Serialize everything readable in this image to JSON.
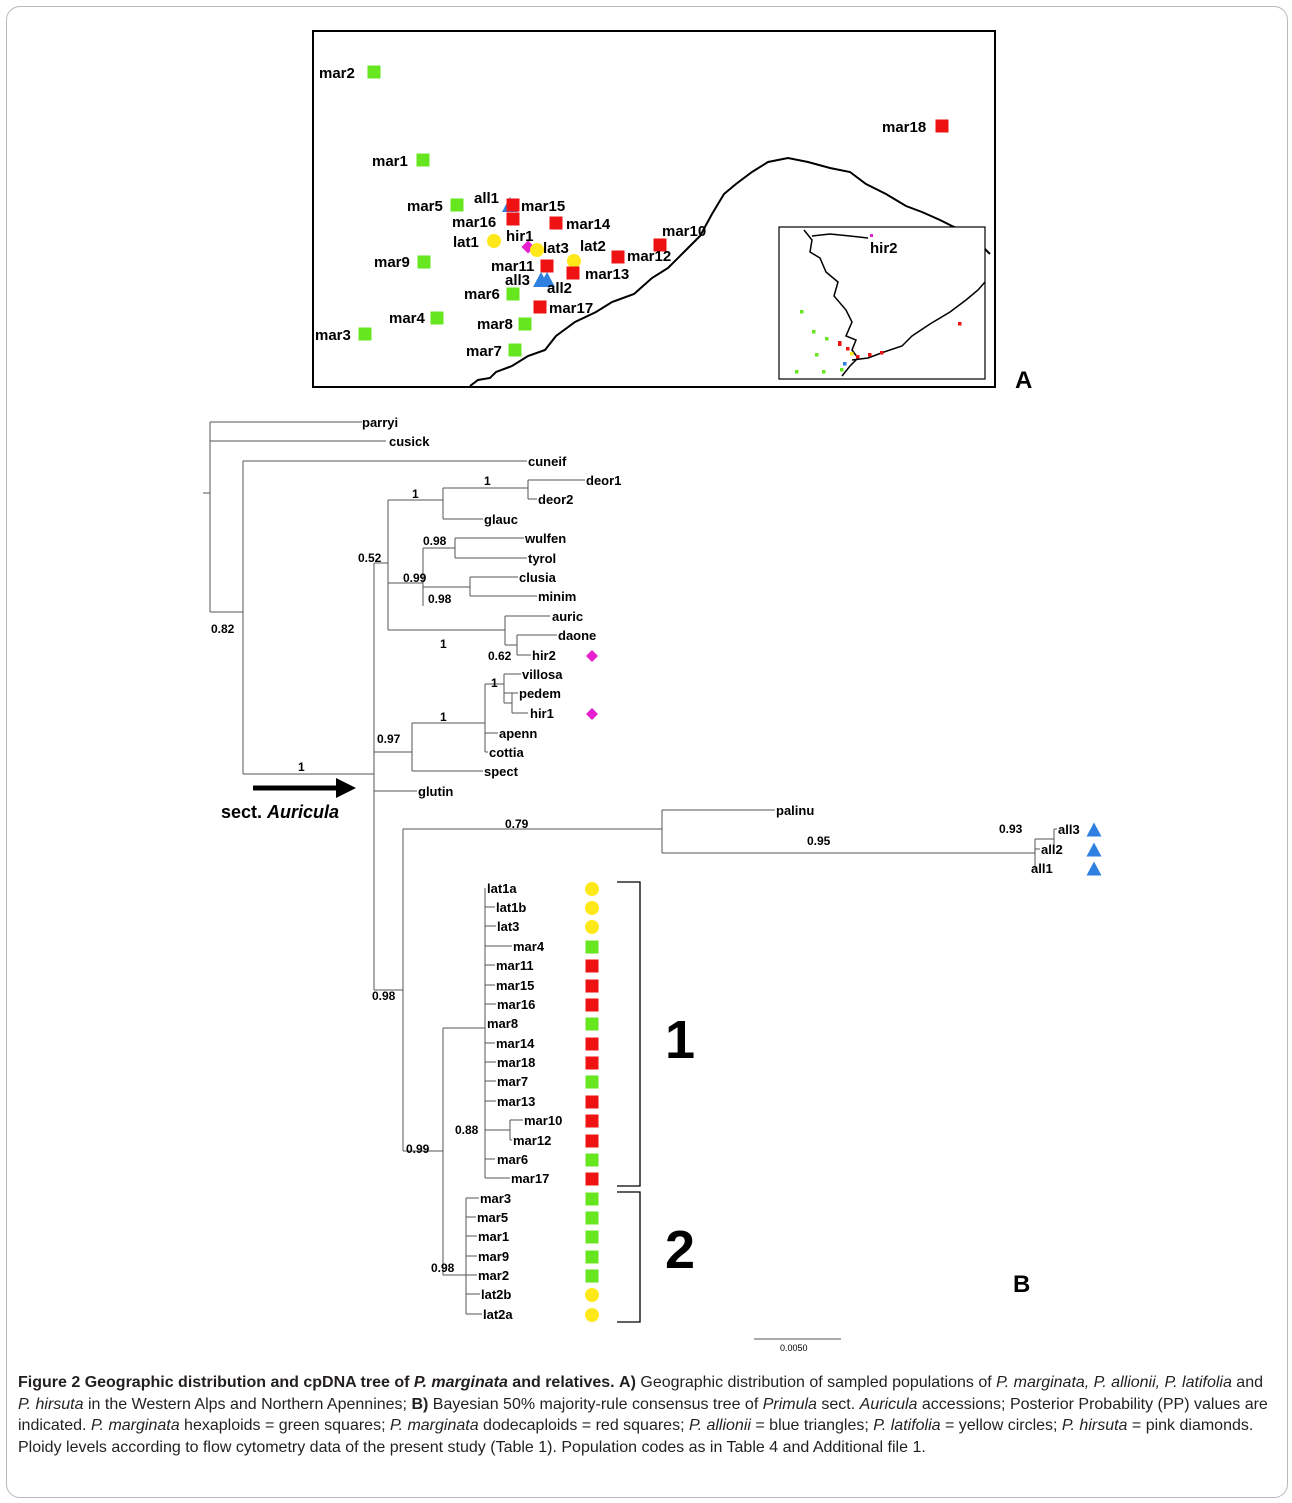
{
  "caption": {
    "figure_label": "Figure 2",
    "title_pre": "Geographic distribution and cpDNA tree of ",
    "title_species": "P. marginata",
    "title_post": " and relatives.",
    "a_label": "A)",
    "a_text_1": " Geographic distribution of sampled populations of ",
    "a_species": "P. marginata, P. allionii, P. latifolia",
    "a_text_2": " and ",
    "a_species_2": "P. hirsuta",
    "a_text_3": " in the Western Alps and Northern Apennines; ",
    "b_label": "B)",
    "b_text_1": " Bayesian 50% majority-rule consensus tree of ",
    "b_genus": "Primula",
    "b_text_2": " sect. ",
    "b_sect": "Auricula",
    "b_text_3": " accessions; Posterior Probability (PP) values are indicated. ",
    "marg1": "P. marginata",
    "b_text_4": " hexaploids = green squares; ",
    "marg2": "P. marginata",
    "b_text_5": " dodecaploids = red squares; ",
    "alli": "P. allionii",
    "b_text_6": " = blue triangles; ",
    "lati": "P. latifolia",
    "b_text_7": " = yellow circles; ",
    "hirs": "P. hirsuta",
    "b_text_8": " = pink diamonds. Ploidy levels according to flow cytometry data of the present study (Table 1). Population codes as in Table 4 and Additional file 1."
  },
  "colors": {
    "marginata_hexaploid": "#66e61f",
    "marginata_dodecaploid": "#ee1212",
    "allionii": "#2f80e0",
    "latifolia": "#ffe81a",
    "hirsuta": "#e61fd0"
  },
  "panel_a": {
    "panel_label": "A",
    "inset_label": "hir2",
    "sites": [
      {
        "label": "mar2",
        "group": "hex"
      },
      {
        "label": "mar18",
        "group": "dodec"
      },
      {
        "label": "mar1",
        "group": "hex"
      },
      {
        "label": "mar5",
        "group": "hex"
      },
      {
        "label": "all1",
        "group": "allionii"
      },
      {
        "label": "mar15",
        "group": "dodec"
      },
      {
        "label": "mar16",
        "group": "dodec"
      },
      {
        "label": "mar14",
        "group": "dodec"
      },
      {
        "label": "mar10",
        "group": "dodec"
      },
      {
        "label": "lat1",
        "group": "latifolia"
      },
      {
        "label": "hir1",
        "group": "hirsuta"
      },
      {
        "label": "lat3",
        "group": "latifolia"
      },
      {
        "label": "lat2",
        "group": "latifolia"
      },
      {
        "label": "mar12",
        "group": "dodec"
      },
      {
        "label": "mar9",
        "group": "hex"
      },
      {
        "label": "mar11",
        "group": "dodec"
      },
      {
        "label": "mar13",
        "group": "dodec"
      },
      {
        "label": "all3",
        "group": "allionii"
      },
      {
        "label": "all2",
        "group": "allionii"
      },
      {
        "label": "mar6",
        "group": "hex"
      },
      {
        "label": "mar17",
        "group": "dodec"
      },
      {
        "label": "mar4",
        "group": "hex"
      },
      {
        "label": "mar8",
        "group": "hex"
      },
      {
        "label": "mar3",
        "group": "hex"
      },
      {
        "label": "mar7",
        "group": "hex"
      }
    ]
  },
  "panel_b": {
    "panel_label": "B",
    "sect_label_1": "sect. ",
    "sect_label_2": "Auricula",
    "scale_label": "0.0050",
    "clade_1": "1",
    "clade_2": "2",
    "support_values": [
      "1",
      "1",
      "0.52",
      "0.98",
      "0.99",
      "0.98",
      "1",
      "0.62",
      "0.82",
      "1",
      "0.97",
      "1",
      "0.79",
      "0.95",
      "0.93",
      "1",
      "0.98",
      "0.88",
      "0.99",
      "0.98"
    ],
    "taxa": [
      {
        "label": "parryi"
      },
      {
        "label": "cusick"
      },
      {
        "label": "cuneif"
      },
      {
        "label": "deor1"
      },
      {
        "label": "deor2"
      },
      {
        "label": "glauc"
      },
      {
        "label": "wulfen"
      },
      {
        "label": "tyrol"
      },
      {
        "label": "clusia"
      },
      {
        "label": "minim"
      },
      {
        "label": "auric"
      },
      {
        "label": "daone"
      },
      {
        "label": "hir2",
        "group": "hirsuta"
      },
      {
        "label": "villosa"
      },
      {
        "label": "pedem"
      },
      {
        "label": "hir1",
        "group": "hirsuta"
      },
      {
        "label": "apenn"
      },
      {
        "label": "cottia"
      },
      {
        "label": "spect"
      },
      {
        "label": "glutin"
      },
      {
        "label": "palinu"
      },
      {
        "label": "all3",
        "group": "allionii"
      },
      {
        "label": "all2",
        "group": "allionii"
      },
      {
        "label": "all1",
        "group": "allionii"
      },
      {
        "label": "lat1a",
        "group": "latifolia"
      },
      {
        "label": "lat1b",
        "group": "latifolia"
      },
      {
        "label": "lat3",
        "group": "latifolia"
      },
      {
        "label": "mar4",
        "group": "hex"
      },
      {
        "label": "mar11",
        "group": "dodec"
      },
      {
        "label": "mar15",
        "group": "dodec"
      },
      {
        "label": "mar16",
        "group": "dodec"
      },
      {
        "label": "mar8",
        "group": "hex"
      },
      {
        "label": "mar14",
        "group": "dodec"
      },
      {
        "label": "mar18",
        "group": "dodec"
      },
      {
        "label": "mar7",
        "group": "hex"
      },
      {
        "label": "mar13",
        "group": "dodec"
      },
      {
        "label": "mar10",
        "group": "dodec"
      },
      {
        "label": "mar12",
        "group": "dodec"
      },
      {
        "label": "mar6",
        "group": "hex"
      },
      {
        "label": "mar17",
        "group": "dodec"
      },
      {
        "label": "mar3",
        "group": "hex"
      },
      {
        "label": "mar5",
        "group": "hex"
      },
      {
        "label": "mar1",
        "group": "hex"
      },
      {
        "label": "mar9",
        "group": "hex"
      },
      {
        "label": "mar2",
        "group": "hex"
      },
      {
        "label": "lat2b",
        "group": "latifolia"
      },
      {
        "label": "lat2a",
        "group": "latifolia"
      }
    ]
  }
}
